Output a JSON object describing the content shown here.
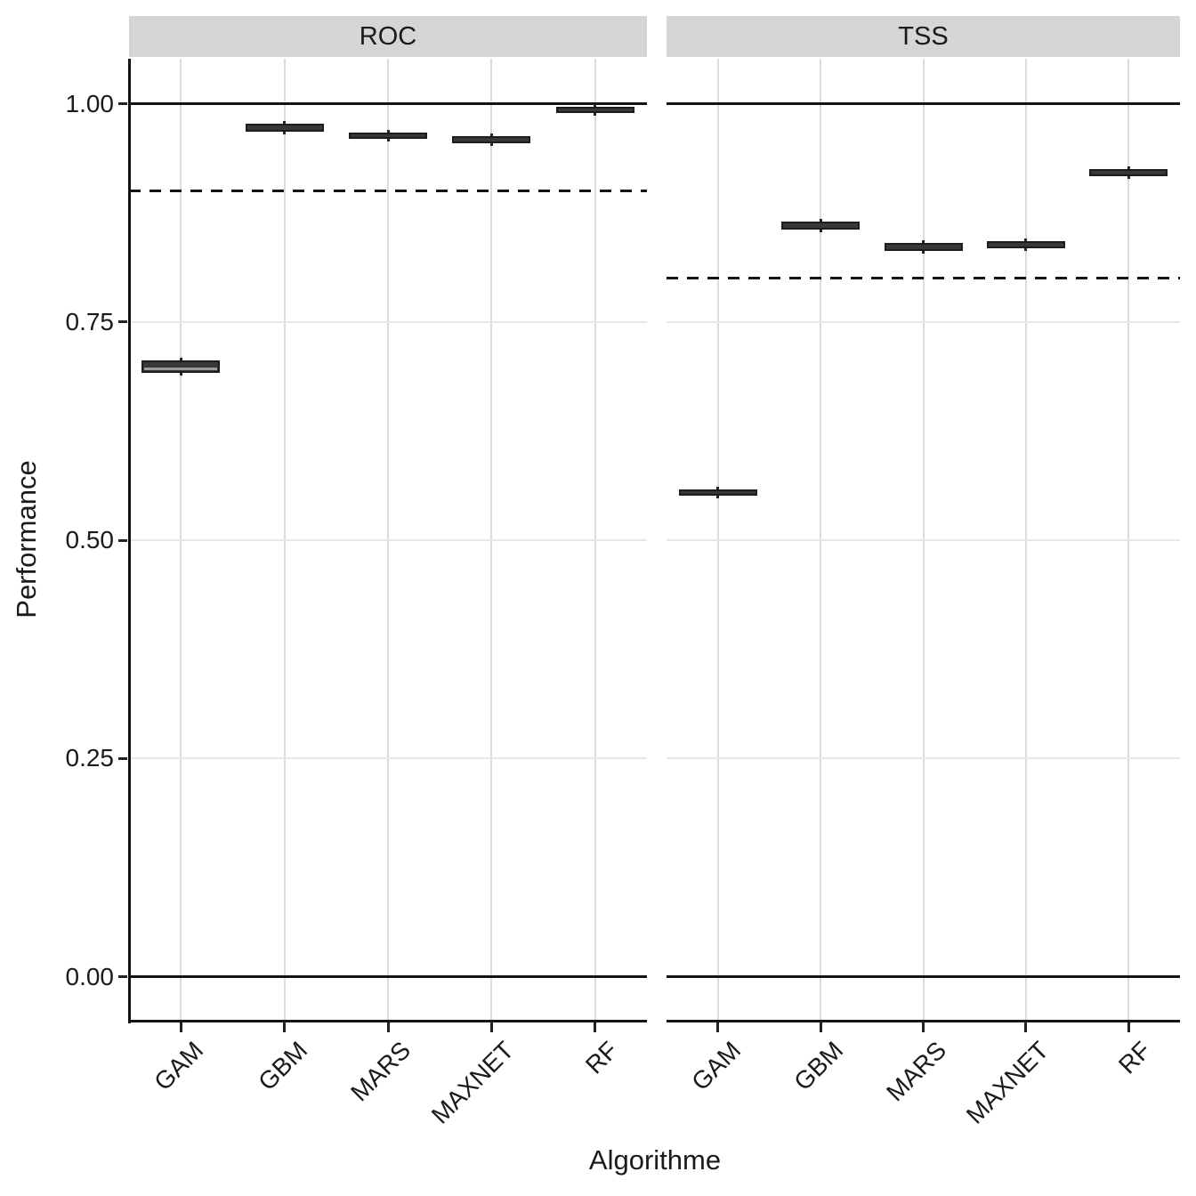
{
  "chart_data": {
    "type": "boxplot",
    "facet_variable_values": [
      "ROC",
      "TSS"
    ],
    "xlabel": "Algorithme",
    "ylabel": "Performance",
    "categories": [
      "GAM",
      "GBM",
      "MARS",
      "MAXNET",
      "RF"
    ],
    "y_ticks": [
      0.0,
      0.25,
      0.5,
      0.75,
      1.0
    ],
    "y_tick_labels": [
      "0.00",
      "0.25",
      "0.50",
      "0.75",
      "1.00"
    ],
    "ylim": [
      -0.05,
      1.05
    ],
    "grid": "on",
    "solid_reference_lines": [
      0.0,
      1.0
    ],
    "facets": [
      {
        "label": "ROC",
        "dashed_reference_line": 0.9,
        "boxes": [
          {
            "category": "GAM",
            "lo": 0.692,
            "median": 0.697,
            "hi": 0.706
          },
          {
            "category": "GBM",
            "lo": 0.968,
            "median": 0.972,
            "hi": 0.977
          },
          {
            "category": "MARS",
            "lo": 0.96,
            "median": 0.964,
            "hi": 0.967
          },
          {
            "category": "MAXNET",
            "lo": 0.955,
            "median": 0.959,
            "hi": 0.963
          },
          {
            "category": "RF",
            "lo": 0.99,
            "median": 0.993,
            "hi": 0.996
          }
        ]
      },
      {
        "label": "TSS",
        "dashed_reference_line": 0.8,
        "boxes": [
          {
            "category": "GAM",
            "lo": 0.552,
            "median": 0.555,
            "hi": 0.558
          },
          {
            "category": "GBM",
            "lo": 0.856,
            "median": 0.861,
            "hi": 0.865
          },
          {
            "category": "MARS",
            "lo": 0.831,
            "median": 0.836,
            "hi": 0.84
          },
          {
            "category": "MAXNET",
            "lo": 0.834,
            "median": 0.839,
            "hi": 0.843
          },
          {
            "category": "RF",
            "lo": 0.917,
            "median": 0.921,
            "hi": 0.925
          }
        ]
      }
    ],
    "colors": {
      "strip_background": "#d5d5d5",
      "box_fill": "#383838",
      "box_border": "#1d1d1d",
      "reference_line": "#141414",
      "gridline_vertical": "#dcdcdc",
      "gridline_horizontal": "#e7e7e7",
      "axis_line": "#141414",
      "text": "#1a1a1a"
    }
  }
}
